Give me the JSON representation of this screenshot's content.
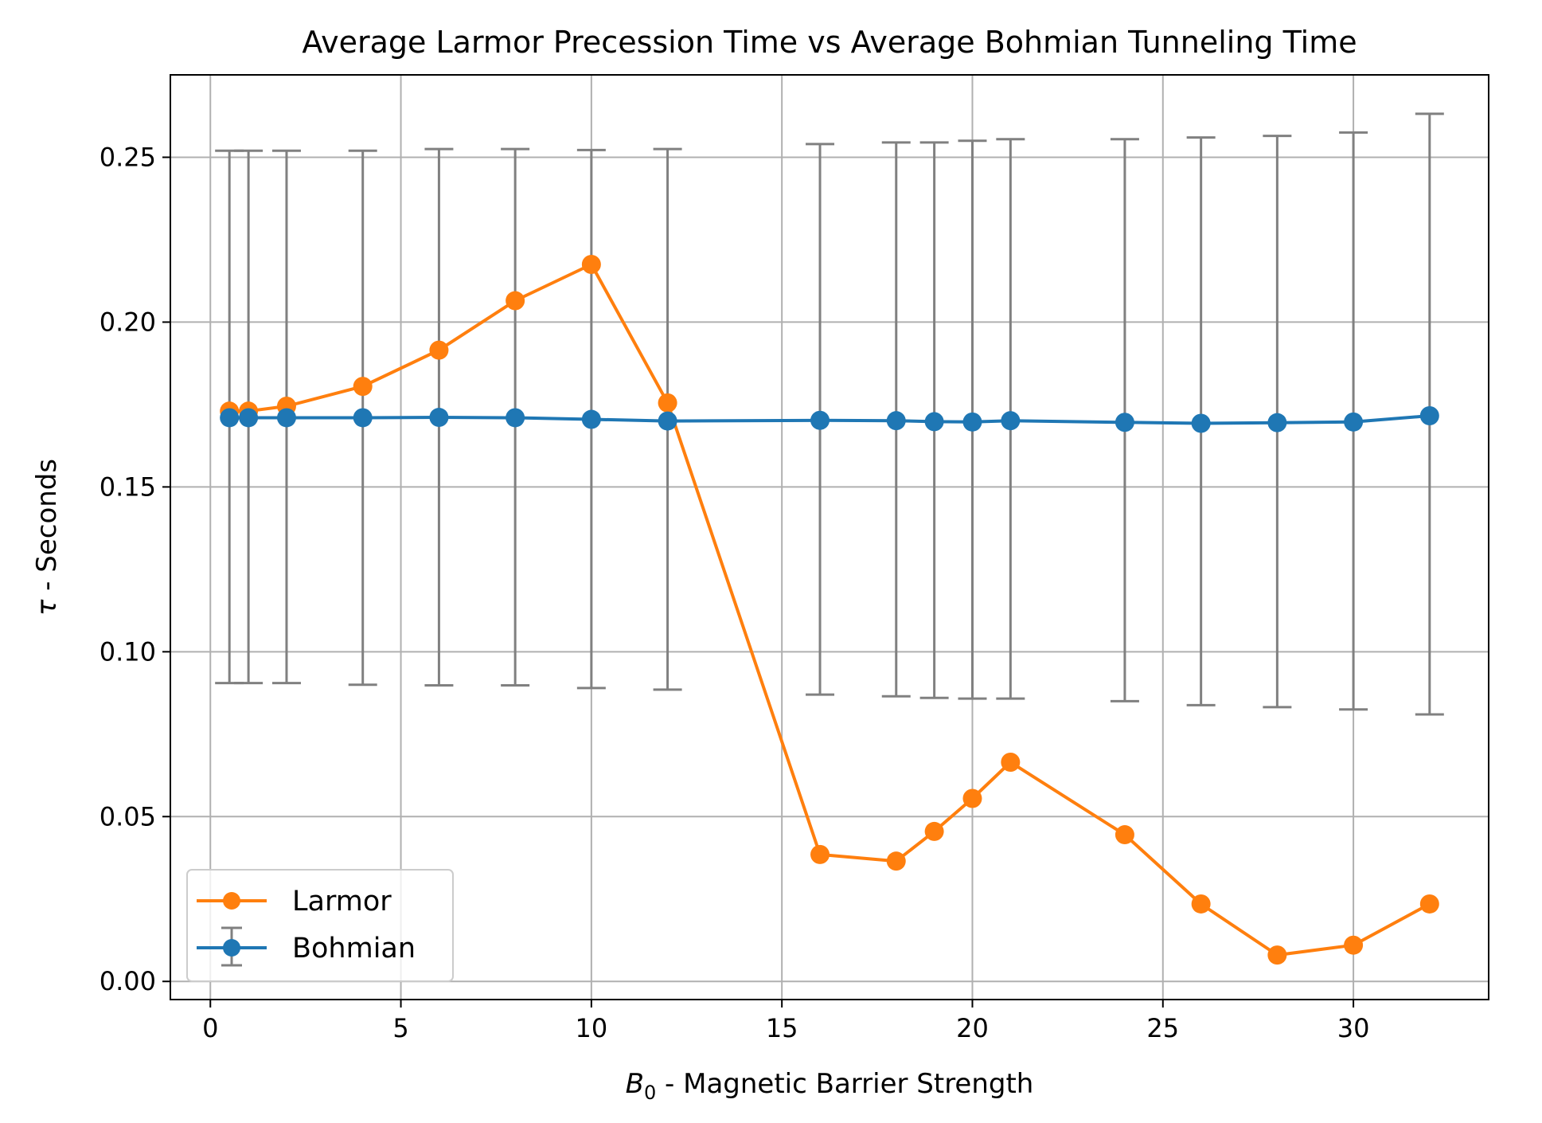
{
  "chart_data": {
    "type": "line",
    "title": "Average Larmor Precession Time vs Average Bohmian Tunneling Time",
    "xlabel_main": "B",
    "xlabel_sub": "0",
    "xlabel_rest": " - Magnetic Barrier Strength",
    "ylabel_symbol": "τ",
    "ylabel_rest": " - Seconds",
    "xlim": [
      -1.05,
      33.55
    ],
    "ylim": [
      -0.0055,
      0.275
    ],
    "xticks": [
      0,
      5,
      10,
      15,
      20,
      25,
      30
    ],
    "xtick_labels": [
      "0",
      "5",
      "10",
      "15",
      "20",
      "25",
      "30"
    ],
    "yticks": [
      0.0,
      0.05,
      0.1,
      0.15,
      0.2,
      0.25
    ],
    "ytick_labels": [
      "0.00",
      "0.05",
      "0.10",
      "0.15",
      "0.20",
      "0.25"
    ],
    "grid": true,
    "legend_position": "lower-left",
    "x": [
      0.5,
      1,
      2,
      4,
      6,
      8,
      10,
      12,
      16,
      18,
      19,
      20,
      21,
      24,
      26,
      28,
      30,
      32
    ],
    "series": [
      {
        "name": "Larmor",
        "color": "#ff7f0e",
        "values": [
          0.173,
          0.173,
          0.1745,
          0.1805,
          0.1915,
          0.2065,
          0.2175,
          0.1755,
          0.0385,
          0.0365,
          0.0455,
          0.0555,
          0.0665,
          0.0445,
          0.0235,
          0.008,
          0.011,
          0.0235
        ]
      },
      {
        "name": "Bohmian",
        "color": "#1f77b4",
        "errorbar_color": "#808080",
        "values": [
          0.171,
          0.171,
          0.171,
          0.171,
          0.1711,
          0.171,
          0.1705,
          0.17,
          0.1702,
          0.1701,
          0.1698,
          0.1697,
          0.1701,
          0.1696,
          0.1693,
          0.1695,
          0.1697,
          0.1716
        ],
        "error_upper": [
          0.252,
          0.252,
          0.252,
          0.252,
          0.2525,
          0.2525,
          0.2522,
          0.2525,
          0.254,
          0.2545,
          0.2545,
          0.255,
          0.2555,
          0.2555,
          0.256,
          0.2565,
          0.2575,
          0.2632
        ],
        "error_lower": [
          0.0905,
          0.0905,
          0.0905,
          0.09,
          0.0898,
          0.0898,
          0.089,
          0.0885,
          0.087,
          0.0865,
          0.086,
          0.0858,
          0.0858,
          0.085,
          0.0838,
          0.0832,
          0.0825,
          0.081
        ]
      }
    ]
  }
}
